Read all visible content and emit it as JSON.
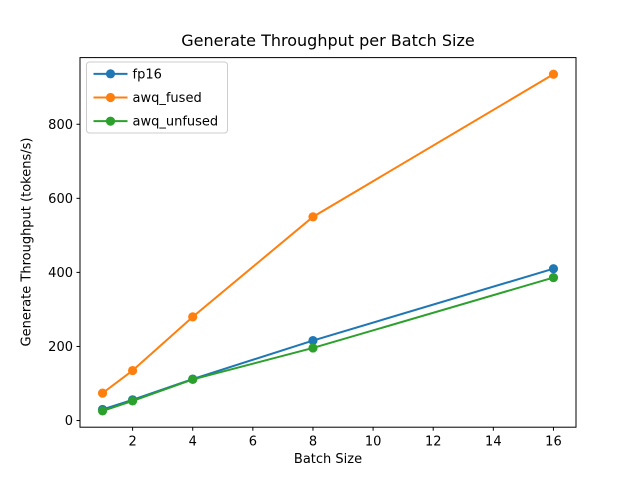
{
  "chart_data": {
    "type": "line",
    "title": "Generate Throughput per Batch Size",
    "xlabel": "Batch Size",
    "ylabel": "Generate Throughput (tokens/s)",
    "x": [
      1,
      2,
      4,
      8,
      16
    ],
    "series": [
      {
        "name": "fp16",
        "color": "#1f77b4",
        "values": [
          30,
          56,
          112,
          216,
          410
        ]
      },
      {
        "name": "awq_fused",
        "color": "#ff7f0e",
        "values": [
          74,
          135,
          280,
          550,
          935
        ]
      },
      {
        "name": "awq_unfused",
        "color": "#2ca02c",
        "values": [
          26,
          53,
          111,
          196,
          386
        ]
      }
    ],
    "xticks": [
      2,
      4,
      6,
      8,
      10,
      12,
      14,
      16
    ],
    "yticks": [
      0,
      200,
      400,
      600,
      800
    ],
    "xlim": [
      0.25,
      16.75
    ],
    "ylim": [
      -18,
      980
    ],
    "grid": false,
    "marker": "o",
    "legend_position": "upper left",
    "colors": {
      "background": "#ffffff",
      "spine": "#000000",
      "tick_label": "#000000",
      "legend_border": "#cccccc"
    }
  }
}
